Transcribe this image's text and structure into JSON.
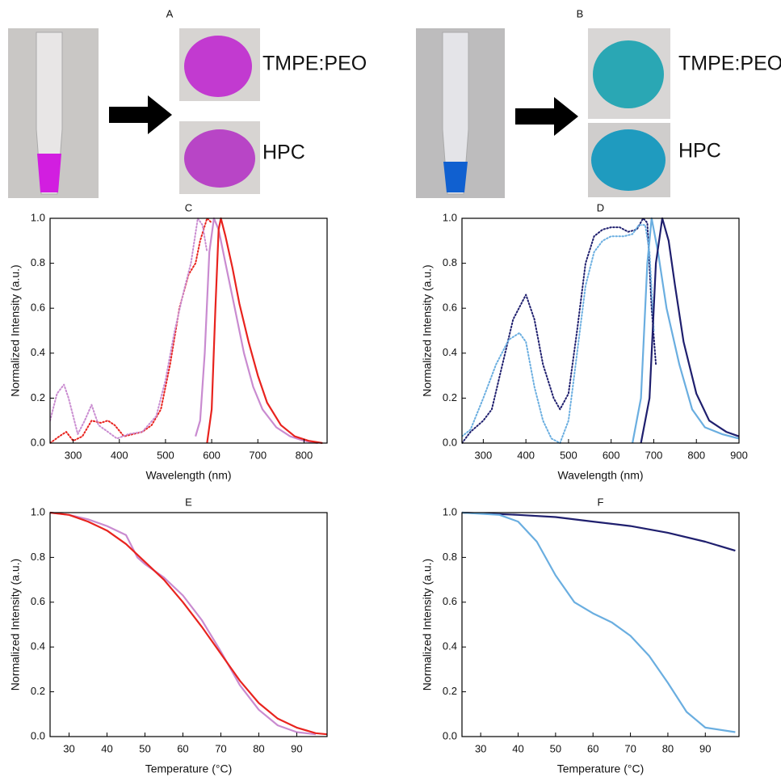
{
  "photo_panels": [
    {
      "label": "A",
      "samples": [
        "TMPE:PEO",
        "HPC"
      ]
    },
    {
      "label": "B",
      "samples": [
        "TMPE:PEO",
        "HPC"
      ]
    }
  ],
  "chart_data": [
    {
      "type": "line",
      "title": "C",
      "x_label": "Wavelength (nm)",
      "y_label": "Normalized Intensity (a.u.)",
      "xlim": [
        250,
        850
      ],
      "xticks": [
        300,
        400,
        500,
        600,
        700,
        800
      ],
      "ylim": [
        0,
        1
      ],
      "yticks": [
        {
          "value": 0,
          "label": "0.0"
        },
        0.2,
        0.4,
        0.6,
        0.8,
        {
          "value": 1,
          "label": "1.0"
        }
      ],
      "series": [
        {
          "color": "#e8231e",
          "style": "dotted",
          "x": [
            250,
            270,
            285,
            300,
            320,
            340,
            360,
            375,
            390,
            410,
            430,
            450,
            470,
            490,
            510,
            530,
            550,
            565,
            575,
            590,
            600
          ],
          "values": [
            0.0,
            0.03,
            0.05,
            0.01,
            0.03,
            0.1,
            0.09,
            0.1,
            0.08,
            0.03,
            0.04,
            0.05,
            0.08,
            0.15,
            0.35,
            0.6,
            0.75,
            0.8,
            0.9,
            1.0,
            0.98
          ]
        },
        {
          "color": "#c98bd0",
          "style": "dotted",
          "x": [
            250,
            265,
            280,
            290,
            310,
            325,
            340,
            355,
            375,
            395,
            420,
            450,
            480,
            500,
            520,
            540,
            555,
            570,
            580,
            590
          ],
          "values": [
            0.1,
            0.22,
            0.26,
            0.2,
            0.04,
            0.1,
            0.17,
            0.08,
            0.05,
            0.02,
            0.04,
            0.05,
            0.12,
            0.28,
            0.5,
            0.68,
            0.8,
            1.0,
            0.97,
            0.85
          ]
        },
        {
          "color": "#c98bd0",
          "style": "solid",
          "x": [
            565,
            575,
            585,
            595,
            605,
            615,
            630,
            650,
            670,
            690,
            710,
            740,
            770,
            800,
            830
          ],
          "values": [
            0.03,
            0.1,
            0.4,
            0.85,
            1.0,
            0.95,
            0.8,
            0.6,
            0.4,
            0.25,
            0.15,
            0.07,
            0.03,
            0.01,
            0.0
          ]
        },
        {
          "color": "#e8231e",
          "style": "solid",
          "x": [
            590,
            600,
            608,
            615,
            620,
            630,
            645,
            660,
            680,
            700,
            720,
            750,
            780,
            810,
            840
          ],
          "values": [
            0.0,
            0.15,
            0.6,
            0.95,
            1.0,
            0.92,
            0.78,
            0.62,
            0.45,
            0.3,
            0.18,
            0.08,
            0.03,
            0.01,
            0.0
          ]
        }
      ]
    },
    {
      "type": "line",
      "title": "D",
      "x_label": "Wavelength (nm)",
      "y_label": "Normalized Intensity (a.u.)",
      "xlim": [
        250,
        900
      ],
      "xticks": [
        300,
        400,
        500,
        600,
        700,
        800,
        900
      ],
      "ylim": [
        0,
        1
      ],
      "yticks": [
        {
          "value": 0,
          "label": "0.0"
        },
        0.2,
        0.4,
        0.6,
        0.8,
        {
          "value": 1,
          "label": "1.0"
        }
      ],
      "series": [
        {
          "color": "#1f1f6e",
          "style": "dotted",
          "x": [
            250,
            270,
            300,
            320,
            345,
            370,
            400,
            420,
            440,
            465,
            480,
            500,
            520,
            540,
            560,
            580,
            600,
            620,
            640,
            660,
            675,
            685,
            695,
            705
          ],
          "values": [
            0.0,
            0.05,
            0.1,
            0.15,
            0.35,
            0.55,
            0.66,
            0.55,
            0.35,
            0.2,
            0.15,
            0.22,
            0.5,
            0.8,
            0.92,
            0.95,
            0.96,
            0.96,
            0.94,
            0.95,
            1.0,
            0.98,
            0.6,
            0.35
          ]
        },
        {
          "color": "#6aaee0",
          "style": "dotted",
          "x": [
            250,
            270,
            300,
            330,
            360,
            385,
            400,
            420,
            440,
            460,
            480,
            500,
            520,
            540,
            560,
            580,
            600,
            630,
            650,
            665,
            680,
            690,
            700
          ],
          "values": [
            0.03,
            0.06,
            0.2,
            0.35,
            0.46,
            0.49,
            0.45,
            0.25,
            0.1,
            0.02,
            0.0,
            0.1,
            0.4,
            0.7,
            0.85,
            0.9,
            0.92,
            0.92,
            0.93,
            0.97,
            0.97,
            0.85,
            0.5
          ]
        },
        {
          "color": "#6aaee0",
          "style": "solid",
          "x": [
            650,
            670,
            685,
            695,
            710,
            730,
            760,
            790,
            820,
            860,
            900
          ],
          "values": [
            0.0,
            0.2,
            0.8,
            1.0,
            0.85,
            0.6,
            0.35,
            0.15,
            0.07,
            0.04,
            0.02
          ]
        },
        {
          "color": "#1f1f6e",
          "style": "solid",
          "x": [
            670,
            690,
            705,
            720,
            735,
            750,
            770,
            800,
            830,
            870,
            900
          ],
          "values": [
            0.0,
            0.2,
            0.8,
            1.0,
            0.9,
            0.7,
            0.45,
            0.22,
            0.1,
            0.05,
            0.03
          ]
        }
      ]
    },
    {
      "type": "line",
      "title": "E",
      "x_label": "Temperature (°C)",
      "y_label": "Normalized Intensity (a.u.)",
      "xlim": [
        25,
        98
      ],
      "xticks": [
        30,
        40,
        50,
        60,
        70,
        80,
        90
      ],
      "ylim": [
        0,
        1
      ],
      "yticks": [
        {
          "value": 0,
          "label": "0.0"
        },
        0.2,
        0.4,
        0.6,
        0.8,
        {
          "value": 1,
          "label": "1.0"
        }
      ],
      "series": [
        {
          "color": "#c98bd0",
          "style": "solid",
          "x": [
            25,
            30,
            35,
            40,
            45,
            48,
            50,
            55,
            60,
            65,
            70,
            75,
            80,
            85,
            90,
            95
          ],
          "values": [
            1.0,
            0.99,
            0.97,
            0.94,
            0.9,
            0.8,
            0.77,
            0.71,
            0.63,
            0.52,
            0.38,
            0.23,
            0.12,
            0.05,
            0.02,
            0.01
          ]
        },
        {
          "color": "#e8231e",
          "style": "solid",
          "x": [
            25,
            30,
            35,
            40,
            45,
            50,
            55,
            60,
            65,
            70,
            75,
            80,
            85,
            90,
            95,
            98
          ],
          "values": [
            1.0,
            0.99,
            0.96,
            0.92,
            0.86,
            0.78,
            0.7,
            0.6,
            0.49,
            0.37,
            0.25,
            0.15,
            0.08,
            0.04,
            0.015,
            0.01
          ]
        }
      ]
    },
    {
      "type": "line",
      "title": "F",
      "x_label": "Temperature (°C)",
      "y_label": "Normalized Intensity (a.u.)",
      "xlim": [
        25,
        99
      ],
      "xticks": [
        30,
        40,
        50,
        60,
        70,
        80,
        90
      ],
      "ylim": [
        0,
        1
      ],
      "yticks": [
        {
          "value": 0,
          "label": "0.0"
        },
        0.2,
        0.4,
        0.6,
        0.8,
        {
          "value": 1,
          "label": "1.0"
        }
      ],
      "series": [
        {
          "color": "#1f1f6e",
          "style": "solid",
          "x": [
            25,
            40,
            50,
            60,
            70,
            80,
            90,
            98
          ],
          "values": [
            1.0,
            0.99,
            0.98,
            0.96,
            0.94,
            0.91,
            0.87,
            0.83
          ]
        },
        {
          "color": "#6aaee0",
          "style": "solid",
          "x": [
            25,
            35,
            40,
            45,
            50,
            55,
            60,
            65,
            70,
            75,
            80,
            85,
            90,
            98
          ],
          "values": [
            1.0,
            0.99,
            0.96,
            0.87,
            0.72,
            0.6,
            0.55,
            0.51,
            0.45,
            0.36,
            0.24,
            0.11,
            0.04,
            0.02
          ]
        }
      ]
    }
  ]
}
